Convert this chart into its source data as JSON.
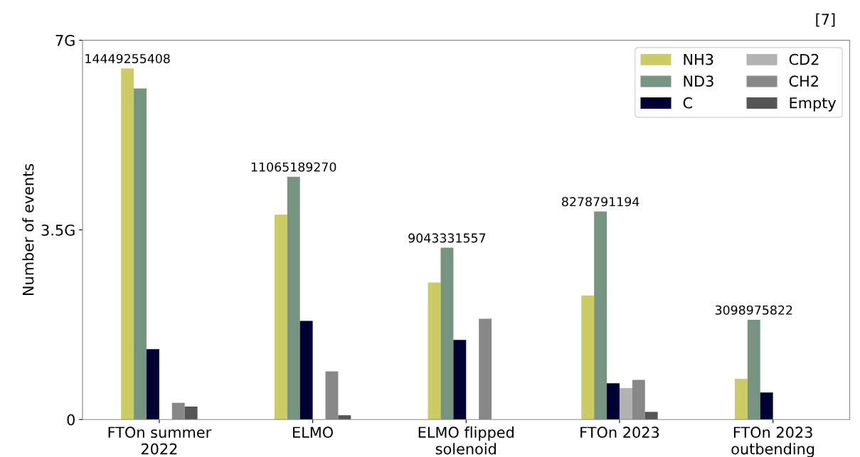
{
  "chart_data": {
    "type": "bar",
    "ylabel": "Number of events",
    "categories": [
      "FTOn summer\n2022",
      "ELMO",
      "ELMO flipped\nsolenoid",
      "FTOn 2023",
      "FTOn 2023\noutbending"
    ],
    "series": [
      {
        "name": "NH3",
        "color": "#cccc66",
        "values": [
          6.48,
          3.78,
          2.53,
          2.29,
          0.75
        ]
      },
      {
        "name": "ND3",
        "color": "#779480",
        "values": [
          6.11,
          4.48,
          3.17,
          3.84,
          1.84
        ]
      },
      {
        "name": "C",
        "color": "#000033",
        "values": [
          1.3,
          1.82,
          1.47,
          0.67,
          0.5
        ]
      },
      {
        "name": "CD2",
        "color": "#b3b3b3",
        "values": [
          null,
          null,
          null,
          0.58,
          null
        ]
      },
      {
        "name": "CH2",
        "color": "#888888",
        "values": [
          0.31,
          0.89,
          1.86,
          0.73,
          null
        ]
      },
      {
        "name": "Empty",
        "color": "#555555",
        "values": [
          0.24,
          0.08,
          null,
          0.14,
          null
        ]
      }
    ],
    "ylim": [
      0,
      7
    ],
    "yticks": [
      {
        "value": 0,
        "label": "0"
      },
      {
        "value": 3.5,
        "label": "3.5G"
      },
      {
        "value": 7,
        "label": "7G"
      }
    ],
    "grid": false,
    "legend": "top right",
    "annotations": [
      "[7]",
      "14449255408",
      "11065189270",
      "9043331557",
      "8278791194",
      "3098975822"
    ]
  }
}
